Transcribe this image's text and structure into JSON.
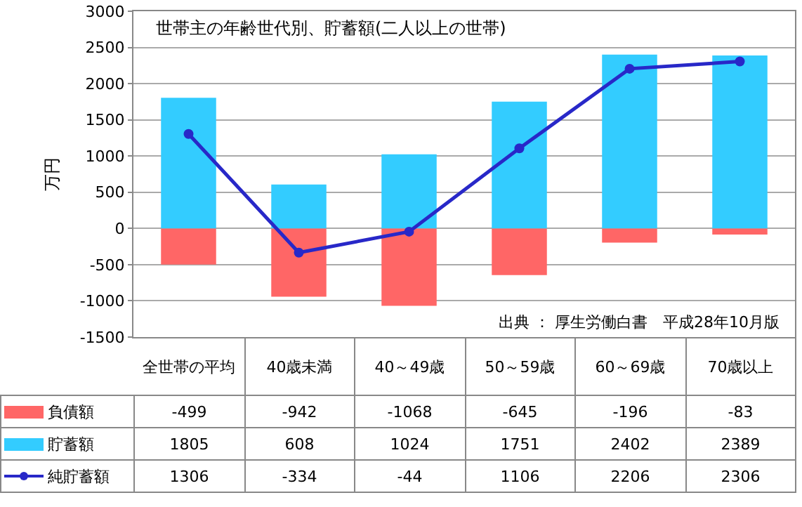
{
  "chart_data": {
    "type": "bar",
    "title": "世帯主の年齢世代別、貯蓄額(二人以上の世帯)",
    "ylabel": "万円",
    "categories": [
      "全世帯の平均",
      "40歳未満",
      "40～49歳",
      "50～59歳",
      "60～69歳",
      "70歳以上"
    ],
    "series": [
      {
        "name": "負債額",
        "color": "#ff6666",
        "values": [
          -499,
          -942,
          -1068,
          -645,
          -196,
          -83
        ]
      },
      {
        "name": "貯蓄額",
        "color": "#33ccff",
        "values": [
          1805,
          608,
          1024,
          1751,
          2402,
          2389
        ]
      },
      {
        "name": "純貯蓄額",
        "type": "line",
        "color": "#2828c8",
        "values": [
          1306,
          -334,
          -44,
          1106,
          2206,
          2306
        ]
      }
    ],
    "stacked": true,
    "ylim": [
      -1500,
      3000
    ],
    "yticks": [
      -1500,
      -1000,
      -500,
      0,
      500,
      1000,
      1500,
      2000,
      2500,
      3000
    ],
    "grid": "y",
    "marker": "circle",
    "legend": "bottom",
    "tick_labels": "y",
    "data_labels": true,
    "annotations": [
      "出典 ： 厚生労働白書　平成28年10月版"
    ]
  }
}
